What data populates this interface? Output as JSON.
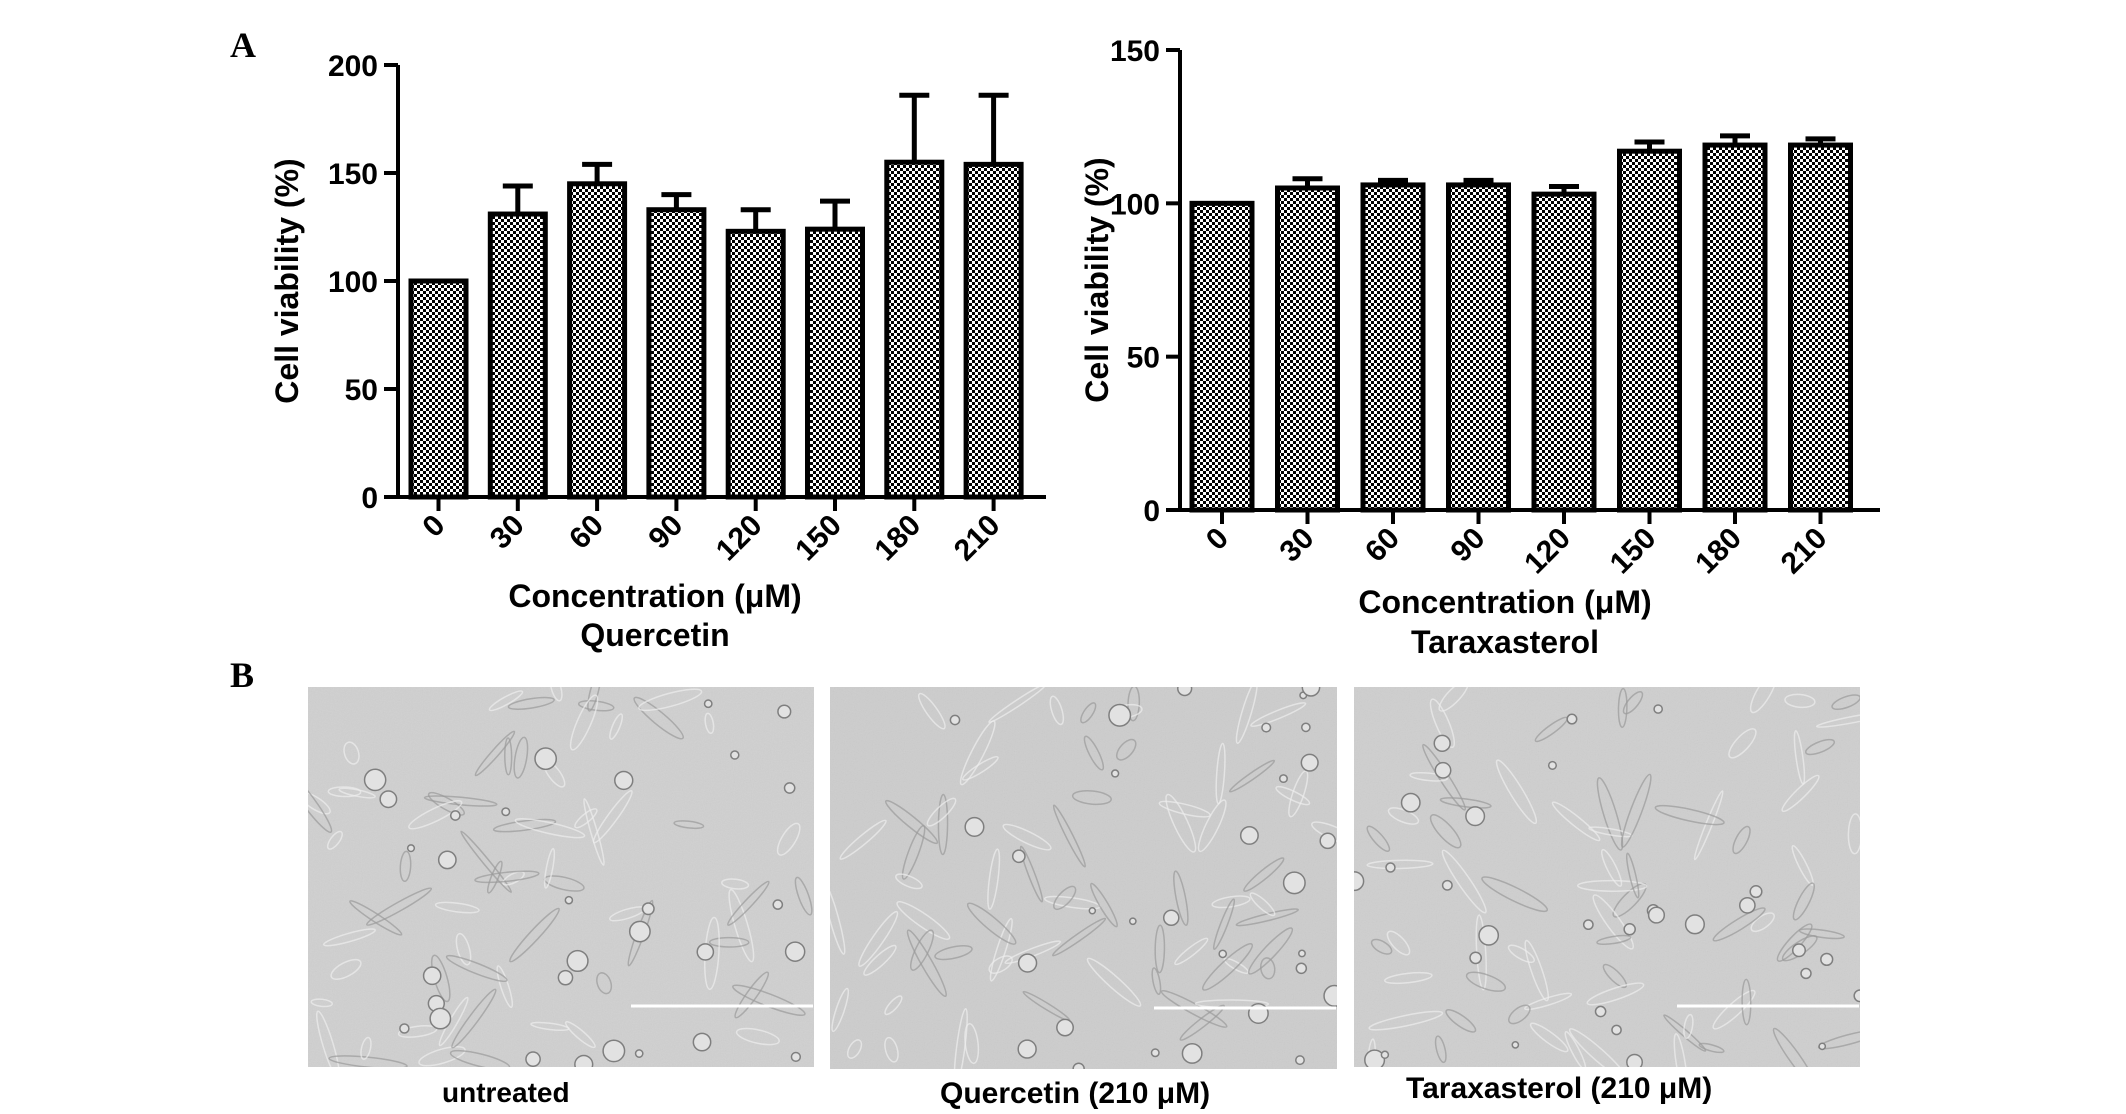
{
  "panel_labels": [
    "A",
    "B"
  ],
  "chart_data": [
    {
      "type": "bar",
      "categories": [
        "0",
        "30",
        "60",
        "90",
        "120",
        "150",
        "180",
        "210"
      ],
      "values": [
        100,
        131,
        145,
        133,
        123,
        124,
        155,
        154
      ],
      "errors": [
        0,
        13,
        9,
        7,
        10,
        13,
        31,
        32
      ],
      "ylim": [
        0,
        200
      ],
      "yticks": [
        "0",
        "50",
        "100",
        "150",
        "200"
      ],
      "ylabel": "Cell viability (%)",
      "xlabel": "Concentration (μM)",
      "subtitle": "Quercetin",
      "grid": false,
      "legend": "none",
      "bar_fill": "checkerboard",
      "colors": {
        "bar_dark": "#000000",
        "bar_light": "#ffffff"
      }
    },
    {
      "type": "bar",
      "categories": [
        "0",
        "30",
        "60",
        "90",
        "120",
        "150",
        "180",
        "210"
      ],
      "values": [
        100,
        105,
        106,
        106,
        103,
        117,
        119,
        119
      ],
      "errors": [
        0,
        3,
        1.5,
        1.5,
        2.5,
        3,
        3,
        2
      ],
      "ylim": [
        0,
        150
      ],
      "yticks": [
        "0",
        "50",
        "100",
        "150"
      ],
      "ylabel": "Cell viability (%)",
      "xlabel": "Concentration (μM)",
      "subtitle": "Taraxasterol",
      "grid": false,
      "legend": "none",
      "bar_fill": "checkerboard",
      "colors": {
        "bar_dark": "#000000",
        "bar_light": "#ffffff"
      }
    }
  ],
  "micrographs": [
    {
      "caption": "untreated",
      "background": "#d0d0d0"
    },
    {
      "caption": "Quercetin (210 μM)",
      "background": "#cdcdcd"
    },
    {
      "caption": "Taraxasterol (210 μM)",
      "background": "#cfcfcf"
    }
  ]
}
